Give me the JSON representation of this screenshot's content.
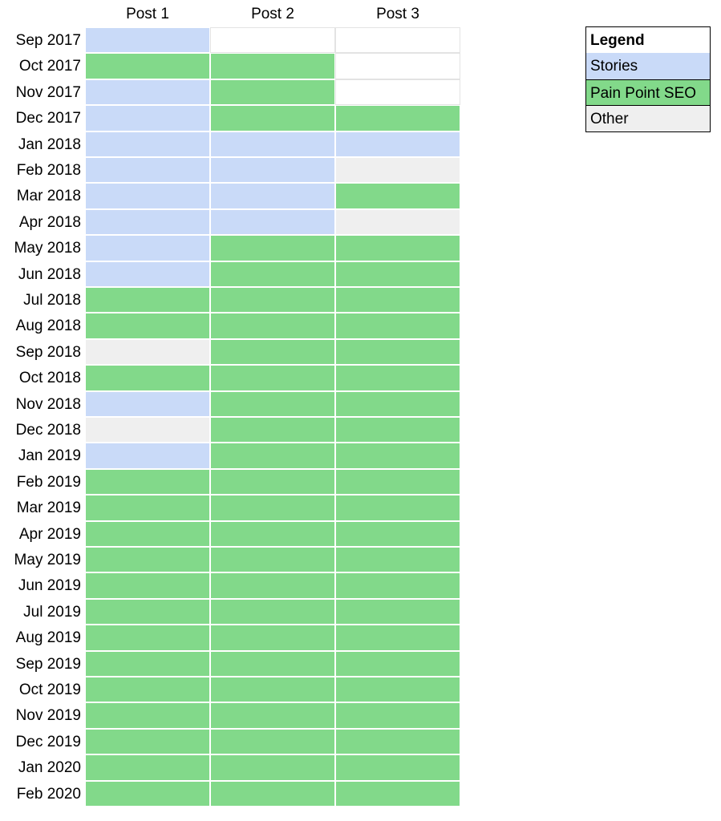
{
  "chart_data": {
    "type": "table",
    "columns": [
      "Post 1",
      "Post 2",
      "Post 3"
    ],
    "rows": [
      {
        "label": "Sep 2017",
        "cells": [
          "stories",
          "none",
          "none"
        ]
      },
      {
        "label": "Oct 2017",
        "cells": [
          "seo",
          "seo",
          "none"
        ]
      },
      {
        "label": "Nov 2017",
        "cells": [
          "stories",
          "seo",
          "none"
        ]
      },
      {
        "label": "Dec 2017",
        "cells": [
          "stories",
          "seo",
          "seo"
        ]
      },
      {
        "label": "Jan 2018",
        "cells": [
          "stories",
          "stories",
          "stories"
        ]
      },
      {
        "label": "Feb 2018",
        "cells": [
          "stories",
          "stories",
          "other"
        ]
      },
      {
        "label": "Mar 2018",
        "cells": [
          "stories",
          "stories",
          "seo"
        ]
      },
      {
        "label": "Apr 2018",
        "cells": [
          "stories",
          "stories",
          "other"
        ]
      },
      {
        "label": "May 2018",
        "cells": [
          "stories",
          "seo",
          "seo"
        ]
      },
      {
        "label": "Jun 2018",
        "cells": [
          "stories",
          "seo",
          "seo"
        ]
      },
      {
        "label": "Jul 2018",
        "cells": [
          "seo",
          "seo",
          "seo"
        ]
      },
      {
        "label": "Aug 2018",
        "cells": [
          "seo",
          "seo",
          "seo"
        ]
      },
      {
        "label": "Sep 2018",
        "cells": [
          "other",
          "seo",
          "seo"
        ]
      },
      {
        "label": "Oct 2018",
        "cells": [
          "seo",
          "seo",
          "seo"
        ]
      },
      {
        "label": "Nov 2018",
        "cells": [
          "stories",
          "seo",
          "seo"
        ]
      },
      {
        "label": "Dec 2018",
        "cells": [
          "other",
          "seo",
          "seo"
        ]
      },
      {
        "label": "Jan 2019",
        "cells": [
          "stories",
          "seo",
          "seo"
        ]
      },
      {
        "label": "Feb 2019",
        "cells": [
          "seo",
          "seo",
          "seo"
        ]
      },
      {
        "label": "Mar 2019",
        "cells": [
          "seo",
          "seo",
          "seo"
        ]
      },
      {
        "label": "Apr 2019",
        "cells": [
          "seo",
          "seo",
          "seo"
        ]
      },
      {
        "label": "May 2019",
        "cells": [
          "seo",
          "seo",
          "seo"
        ]
      },
      {
        "label": "Jun 2019",
        "cells": [
          "seo",
          "seo",
          "seo"
        ]
      },
      {
        "label": "Jul 2019",
        "cells": [
          "seo",
          "seo",
          "seo"
        ]
      },
      {
        "label": "Aug 2019",
        "cells": [
          "seo",
          "seo",
          "seo"
        ]
      },
      {
        "label": "Sep 2019",
        "cells": [
          "seo",
          "seo",
          "seo"
        ]
      },
      {
        "label": "Oct 2019",
        "cells": [
          "seo",
          "seo",
          "seo"
        ]
      },
      {
        "label": "Nov 2019",
        "cells": [
          "seo",
          "seo",
          "seo"
        ]
      },
      {
        "label": "Dec 2019",
        "cells": [
          "seo",
          "seo",
          "seo"
        ]
      },
      {
        "label": "Jan 2020",
        "cells": [
          "seo",
          "seo",
          "seo"
        ]
      },
      {
        "label": "Feb 2020",
        "cells": [
          "seo",
          "seo",
          "seo"
        ]
      }
    ],
    "legend": {
      "title": "Legend",
      "placement": "top-right",
      "items": [
        {
          "key": "stories",
          "label": "Stories",
          "color": "#c9daf8"
        },
        {
          "key": "seo",
          "label": "Pain Point SEO",
          "color": "#82d98a"
        },
        {
          "key": "other",
          "label": "Other",
          "color": "#efefef"
        }
      ]
    },
    "empty_color": "#ffffff",
    "grid_line_color": "#e3e3e3"
  }
}
